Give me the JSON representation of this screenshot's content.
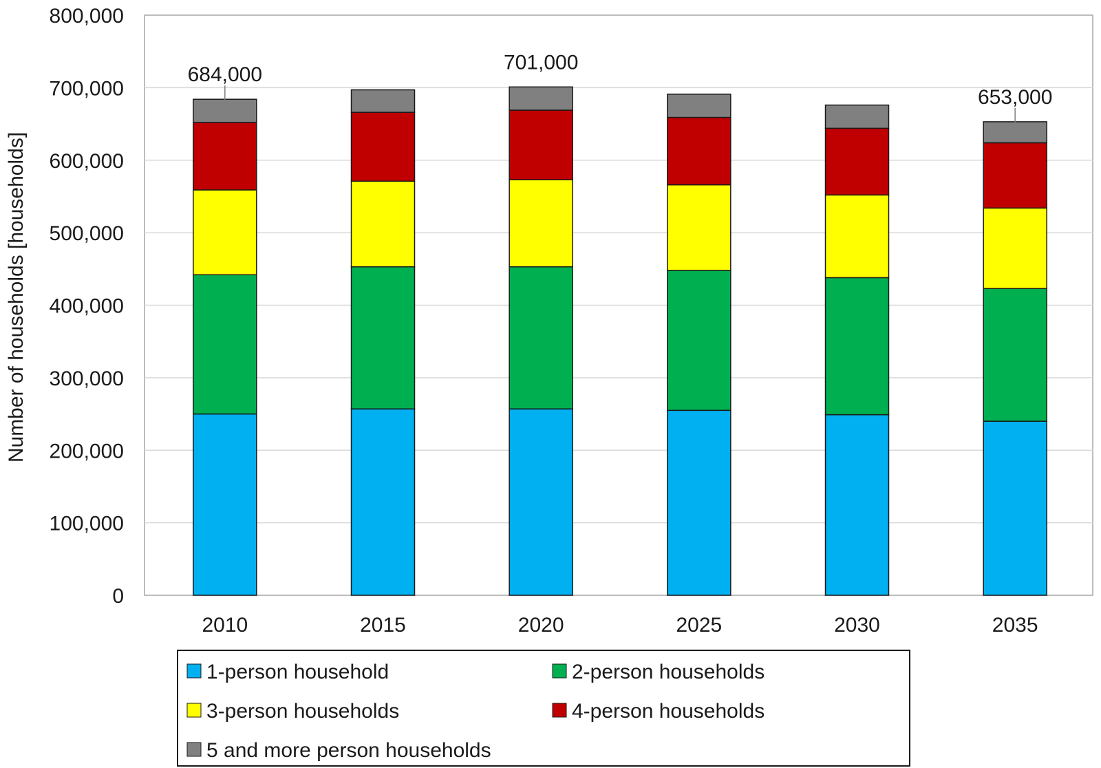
{
  "chart_data": {
    "type": "bar",
    "stacked": true,
    "title": "",
    "xlabel": "",
    "ylabel": "Number of households [households]",
    "ylim": [
      0,
      800000
    ],
    "y_ticks": [
      "0",
      "100,000",
      "200,000",
      "300,000",
      "400,000",
      "500,000",
      "600,000",
      "700,000",
      "800,000"
    ],
    "y_tick_values": [
      0,
      100000,
      200000,
      300000,
      400000,
      500000,
      600000,
      700000,
      800000
    ],
    "grid": true,
    "legend_placement": "bottom",
    "categories": [
      "2010",
      "2015",
      "2020",
      "2025",
      "2030",
      "2035"
    ],
    "series": [
      {
        "name": "1-person household",
        "color": "#00b0f0",
        "values": [
          250000,
          257000,
          257000,
          255000,
          249000,
          240000
        ]
      },
      {
        "name": "2-person households",
        "color": "#00b050",
        "values": [
          192000,
          196000,
          196000,
          193000,
          189000,
          183000
        ]
      },
      {
        "name": "3-person households",
        "color": "#ffff00",
        "values": [
          117000,
          118000,
          120000,
          118000,
          114000,
          111000
        ]
      },
      {
        "name": "4-person households",
        "color": "#c00000",
        "values": [
          93000,
          95000,
          96000,
          93000,
          92000,
          90000
        ]
      },
      {
        "name": "5 and more person households",
        "color": "#808080",
        "values": [
          32000,
          31000,
          32000,
          32000,
          32000,
          29000
        ]
      }
    ],
    "annotations": [
      {
        "category": "2010",
        "text": "684,000",
        "value": 684000
      },
      {
        "category": "2020",
        "text": "701,000",
        "value": 701000
      },
      {
        "category": "2035",
        "text": "653,000",
        "value": 653000
      }
    ]
  }
}
